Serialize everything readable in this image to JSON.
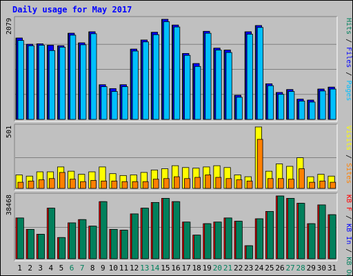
{
  "chart_data": {
    "type": "bar",
    "title": "Daily usage for May 2017",
    "categories": [
      "1",
      "2",
      "3",
      "4",
      "5",
      "6",
      "7",
      "8",
      "9",
      "10",
      "11",
      "12",
      "13",
      "14",
      "15",
      "16",
      "17",
      "18",
      "19",
      "20",
      "21",
      "22",
      "23",
      "24",
      "25",
      "26",
      "27",
      "28",
      "29",
      "30",
      "31"
    ],
    "weekend_days": [
      "6",
      "7",
      "13",
      "14",
      "20",
      "21",
      "27",
      "28"
    ],
    "panels": [
      {
        "id": "requests",
        "max_label": "2079",
        "ylim": [
          0,
          2079
        ],
        "axis_labels": [
          {
            "text": "Hits",
            "color": "#00805c"
          },
          {
            "text": " / ",
            "color": "#000000"
          },
          {
            "text": "Files",
            "color": "#0000ff"
          },
          {
            "text": " / ",
            "color": "#000000"
          },
          {
            "text": "Pages",
            "color": "#00bfff"
          }
        ],
        "series": [
          {
            "name": "Hits",
            "color": "#00805c",
            "values": [
              1690,
              1560,
              1570,
              1540,
              1530,
              1790,
              1590,
              1820,
              720,
              640,
              720,
              1460,
              1650,
              1810,
              2079,
              1960,
              1370,
              1160,
              1830,
              1480,
              1440,
              500,
              1820,
              1950,
              740,
              560,
              620,
              420,
              400,
              630,
              670
            ]
          },
          {
            "name": "Files",
            "color": "#0000ff",
            "values": [
              1690,
              1560,
              1570,
              1540,
              1530,
              1790,
              1590,
              1820,
              720,
              640,
              720,
              1460,
              1650,
              1810,
              2079,
              1960,
              1370,
              1160,
              1830,
              1480,
              1440,
              500,
              1820,
              1950,
              740,
              560,
              620,
              420,
              400,
              630,
              670
            ]
          },
          {
            "name": "Pages",
            "color": "#00bfff",
            "values": [
              1640,
              1530,
              1540,
              1430,
              1500,
              1750,
              1550,
              1780,
              680,
              580,
              680,
              1420,
              1610,
              1760,
              2030,
              1920,
              1330,
              1100,
              1790,
              1440,
              1390,
              460,
              1770,
              1910,
              700,
              520,
              580,
              380,
              360,
              590,
              630
            ]
          }
        ]
      },
      {
        "id": "visits",
        "max_label": "501",
        "ylim": [
          0,
          501
        ],
        "axis_labels": [
          {
            "text": "Visits",
            "color": "#ffff00"
          },
          {
            "text": " / ",
            "color": "#000000"
          },
          {
            "text": "Sites",
            "color": "#ff8000"
          }
        ],
        "series": [
          {
            "name": "Visits",
            "color": "#ffff00",
            "values": [
              110,
              100,
              135,
              135,
              175,
              140,
              115,
              135,
              175,
              120,
              105,
              110,
              130,
              150,
              160,
              185,
              170,
              165,
              175,
              185,
              170,
              110,
              95,
              501,
              140,
              200,
              180,
              250,
              95,
              115,
              100
            ]
          },
          {
            "name": "Sites",
            "color": "#ff8000",
            "values": [
              50,
              60,
              70,
              80,
              130,
              75,
              55,
              65,
              60,
              60,
              55,
              55,
              55,
              75,
              80,
              95,
              80,
              90,
              110,
              90,
              80,
              70,
              60,
              400,
              80,
              80,
              75,
              160,
              50,
              60,
              50
            ]
          }
        ]
      },
      {
        "id": "traffic",
        "max_label": "38468",
        "ylim": [
          0,
          38468
        ],
        "axis_labels": [
          {
            "text": "KB F",
            "color": "#ff0000"
          },
          {
            "text": " / ",
            "color": "#000000"
          },
          {
            "text": "KB In",
            "color": "#0000ff"
          },
          {
            "text": " / ",
            "color": "#000000"
          },
          {
            "text": "KB Out",
            "color": "#00805c"
          }
        ],
        "series": [
          {
            "name": "KB F",
            "color": "#ff0000",
            "values": [
              25000,
              18000,
              15000,
              31000,
              13000,
              22000,
              24000,
              20000,
              35000,
              18000,
              17500,
              27500,
              31000,
              34500,
              37000,
              35000,
              22500,
              14500,
              21500,
              22500,
              25000,
              23000,
              8000,
              24500,
              29000,
              38468,
              37000,
              34000,
              21500,
              33000,
              27000
            ]
          },
          {
            "name": "KB Out",
            "color": "#00805c",
            "values": [
              25000,
              18000,
              15000,
              31000,
              13000,
              22000,
              24000,
              20000,
              35000,
              18000,
              17500,
              27500,
              31000,
              34500,
              37000,
              35000,
              22500,
              14500,
              21500,
              22500,
              25000,
              23000,
              8000,
              24500,
              29000,
              38468,
              37000,
              34000,
              21500,
              33000,
              27000
            ]
          }
        ]
      }
    ]
  }
}
